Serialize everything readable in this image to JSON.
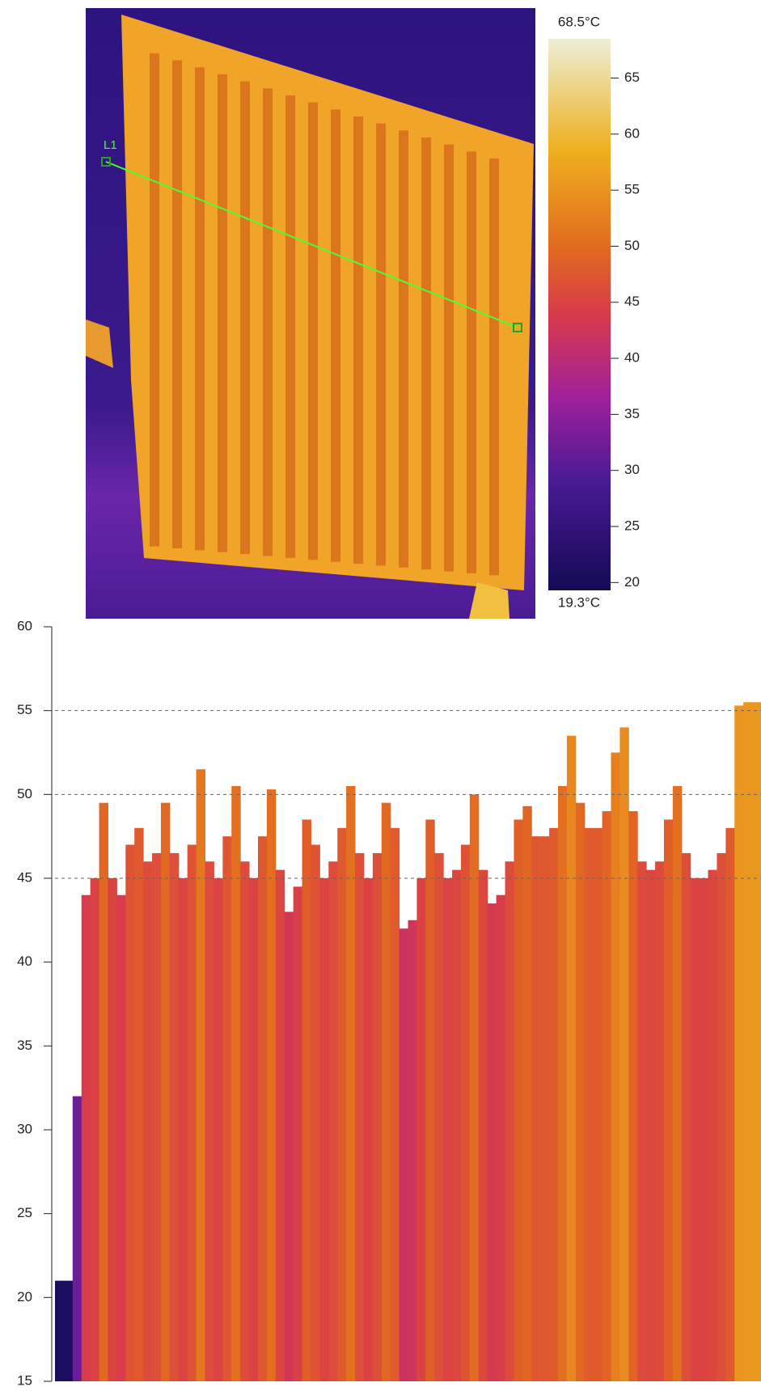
{
  "thermal_image": {
    "line_label": "L1"
  },
  "colorbar": {
    "min": 19.3,
    "max": 68.5,
    "min_label": "19.3°C",
    "max_label": "68.5°C",
    "ticks": [
      20,
      25,
      30,
      35,
      40,
      45,
      50,
      55,
      60,
      65
    ]
  },
  "chart_data": {
    "type": "area",
    "values": [
      21,
      21,
      32,
      44,
      45,
      49.5,
      45,
      44,
      47,
      48,
      46,
      46.5,
      49.5,
      46.5,
      45,
      47,
      51.5,
      46,
      45,
      47.5,
      50.5,
      46,
      45,
      47.5,
      50.3,
      45.5,
      43,
      44.5,
      48.5,
      47,
      45,
      46,
      48,
      50.5,
      46.5,
      45,
      46.5,
      49.5,
      48,
      42,
      42.5,
      45,
      48.5,
      46.5,
      45,
      45.5,
      47,
      50,
      45.5,
      43.5,
      44,
      46,
      48.5,
      49.3,
      47.5,
      47.5,
      48,
      50.5,
      53.5,
      49.5,
      48,
      48,
      49,
      52.5,
      54,
      49,
      46,
      45.5,
      46,
      48.5,
      50.5,
      46.5,
      45,
      45,
      45.5,
      46.5,
      48,
      55.3,
      55.5,
      55.5
    ],
    "ylim": [
      15,
      60
    ],
    "yticks": [
      15,
      20,
      25,
      30,
      35,
      40,
      45,
      50,
      55,
      60
    ],
    "grid_at": [
      45,
      50,
      55
    ]
  }
}
